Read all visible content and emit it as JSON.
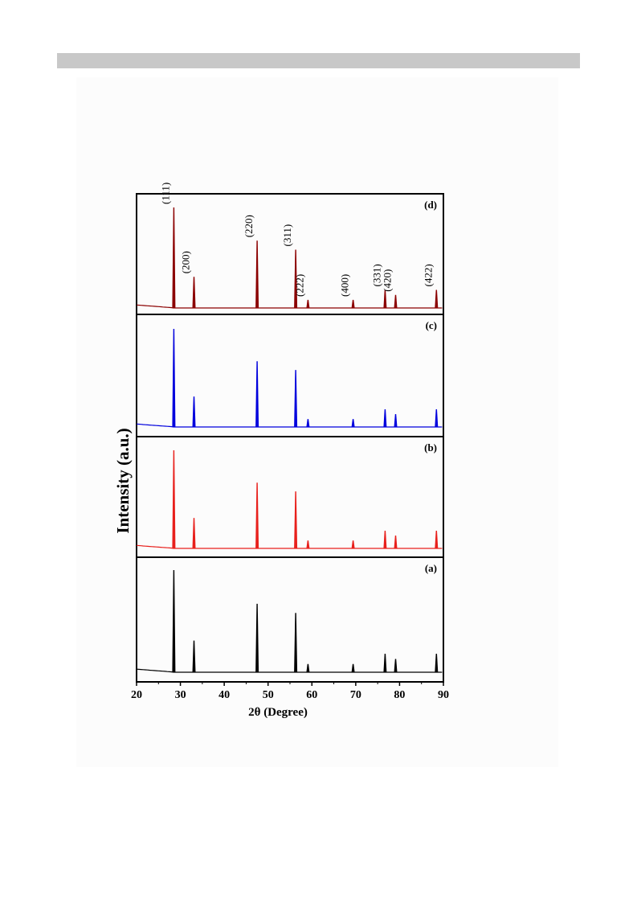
{
  "chart_data": {
    "type": "line",
    "ylabel": "Intensity (a.u.)",
    "xlabel": "2θ (Degree)",
    "xlim": [
      20,
      90
    ],
    "xticks": [
      20,
      30,
      40,
      50,
      60,
      70,
      80,
      90
    ],
    "grid": false,
    "panels": [
      {
        "label": "(d)",
        "color": "#8b0000"
      },
      {
        "label": "(c)",
        "color": "#0000dd"
      },
      {
        "label": "(b)",
        "color": "#e8201c"
      },
      {
        "label": "(a)",
        "color": "#000000"
      }
    ],
    "peaks": [
      {
        "pos": 28.5,
        "hkl": "(111)",
        "rel": 1.0
      },
      {
        "pos": 33.1,
        "hkl": "(200)",
        "rel": 0.31
      },
      {
        "pos": 47.5,
        "hkl": "(220)",
        "rel": 0.67
      },
      {
        "pos": 56.3,
        "hkl": "(311)",
        "rel": 0.58
      },
      {
        "pos": 59.1,
        "hkl": "(222)",
        "rel": 0.08
      },
      {
        "pos": 69.4,
        "hkl": "(400)",
        "rel": 0.08
      },
      {
        "pos": 76.7,
        "hkl": "(331)",
        "rel": 0.18
      },
      {
        "pos": 79.1,
        "hkl": "(420)",
        "rel": 0.13
      },
      {
        "pos": 88.4,
        "hkl": "(422)",
        "rel": 0.18
      }
    ]
  }
}
